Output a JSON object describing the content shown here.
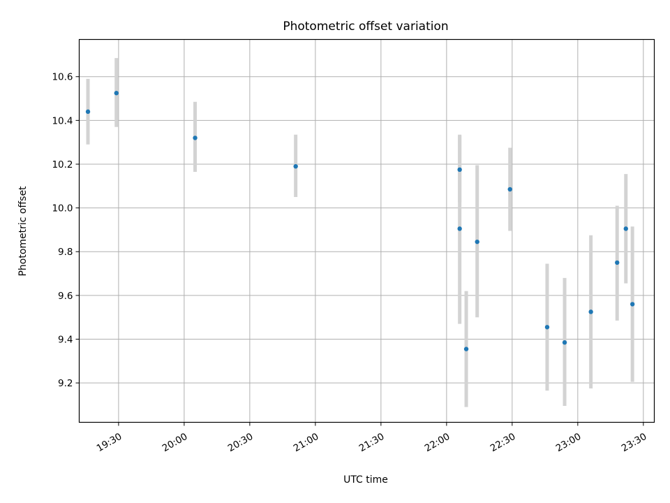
{
  "chart_data": {
    "type": "scatter",
    "title": "Photometric offset variation",
    "xlabel": "UTC time",
    "ylabel": "Photometric offset",
    "grid": true,
    "marker_color": "#1f77b4",
    "errorbar_color": "#d3d3d3",
    "xlim": [
      "19:12",
      "23:35"
    ],
    "ylim": [
      9.02,
      10.77
    ],
    "x_ticks": [
      "19:30",
      "20:00",
      "20:30",
      "21:00",
      "21:30",
      "22:00",
      "22:30",
      "23:00",
      "23:30"
    ],
    "y_ticks": [
      "9.2",
      "9.4",
      "9.6",
      "9.8",
      "10.0",
      "10.2",
      "10.4",
      "10.6"
    ],
    "points": [
      {
        "time": "19:16",
        "y": 10.44,
        "yerr_low": 10.29,
        "yerr_high": 10.59
      },
      {
        "time": "19:29",
        "y": 10.525,
        "yerr_low": 10.37,
        "yerr_high": 10.685
      },
      {
        "time": "20:05",
        "y": 10.32,
        "yerr_low": 10.165,
        "yerr_high": 10.485
      },
      {
        "time": "20:51",
        "y": 10.19,
        "yerr_low": 10.05,
        "yerr_high": 10.335
      },
      {
        "time": "22:06",
        "y": 10.175,
        "yerr_low": 10.025,
        "yerr_high": 10.33
      },
      {
        "time": "22:06",
        "y": 9.905,
        "yerr_low": 9.47,
        "yerr_high": 10.335
      },
      {
        "time": "22:09",
        "y": 9.355,
        "yerr_low": 9.09,
        "yerr_high": 9.62
      },
      {
        "time": "22:14",
        "y": 9.845,
        "yerr_low": 9.5,
        "yerr_high": 10.195
      },
      {
        "time": "22:29",
        "y": 10.085,
        "yerr_low": 9.895,
        "yerr_high": 10.275
      },
      {
        "time": "22:46",
        "y": 9.455,
        "yerr_low": 9.165,
        "yerr_high": 9.745
      },
      {
        "time": "22:54",
        "y": 9.385,
        "yerr_low": 9.095,
        "yerr_high": 9.68
      },
      {
        "time": "23:06",
        "y": 9.525,
        "yerr_low": 9.175,
        "yerr_high": 9.875
      },
      {
        "time": "23:18",
        "y": 9.75,
        "yerr_low": 9.485,
        "yerr_high": 10.01
      },
      {
        "time": "23:22",
        "y": 9.905,
        "yerr_low": 9.655,
        "yerr_high": 10.155
      },
      {
        "time": "23:25",
        "y": 9.56,
        "yerr_low": 9.205,
        "yerr_high": 9.915
      }
    ]
  }
}
